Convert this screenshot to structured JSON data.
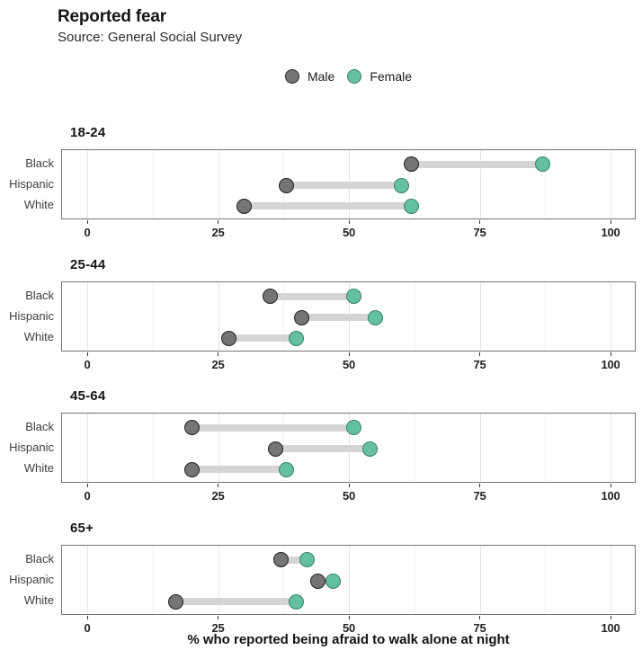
{
  "header": {
    "title": "Reported fear",
    "subtitle": "Source: General Social Survey"
  },
  "legend": {
    "items": [
      {
        "label": "Male",
        "series": "male"
      },
      {
        "label": "Female",
        "series": "female"
      }
    ]
  },
  "colors": {
    "male_fill": "#757575",
    "male_border": "#212121",
    "female_fill": "#63C1A0",
    "female_border": "#3E7F6B",
    "bar": "#D5D5D5",
    "panel_border": "#757575",
    "grid_major": "#E4E4E4",
    "grid_minor": "#F0F0F0",
    "tick_mark": "#333333"
  },
  "axis": {
    "x_label": "% who reported being afraid to walk alone at night"
  },
  "chart_data": {
    "type": "dumbbell",
    "title": "Reported fear",
    "subtitle": "Source: General Social Survey",
    "xlabel": "% who reported being afraid to walk alone at night",
    "xlim": [
      0,
      100
    ],
    "x_major_ticks": [
      0,
      25,
      50,
      75,
      100
    ],
    "x_minor_gridlines": [
      12.5,
      37.5,
      62.5,
      87.5
    ],
    "legend_position": "top-center",
    "series_names": [
      "Male",
      "Female"
    ],
    "panels": [
      {
        "group": "18-24",
        "rows": [
          {
            "category": "Black",
            "male": 62,
            "female": 87
          },
          {
            "category": "Hispanic",
            "male": 38,
            "female": 60
          },
          {
            "category": "White",
            "male": 30,
            "female": 62
          }
        ]
      },
      {
        "group": "25-44",
        "rows": [
          {
            "category": "Black",
            "male": 35,
            "female": 51
          },
          {
            "category": "Hispanic",
            "male": 41,
            "female": 55
          },
          {
            "category": "White",
            "male": 27,
            "female": 40
          }
        ]
      },
      {
        "group": "45-64",
        "rows": [
          {
            "category": "Black",
            "male": 20,
            "female": 51
          },
          {
            "category": "Hispanic",
            "male": 36,
            "female": 54
          },
          {
            "category": "White",
            "male": 20,
            "female": 38
          }
        ]
      },
      {
        "group": "65+",
        "rows": [
          {
            "category": "Black",
            "male": 37,
            "female": 42
          },
          {
            "category": "Hispanic",
            "male": 44,
            "female": 47
          },
          {
            "category": "White",
            "male": 17,
            "female": 40
          }
        ]
      }
    ]
  }
}
